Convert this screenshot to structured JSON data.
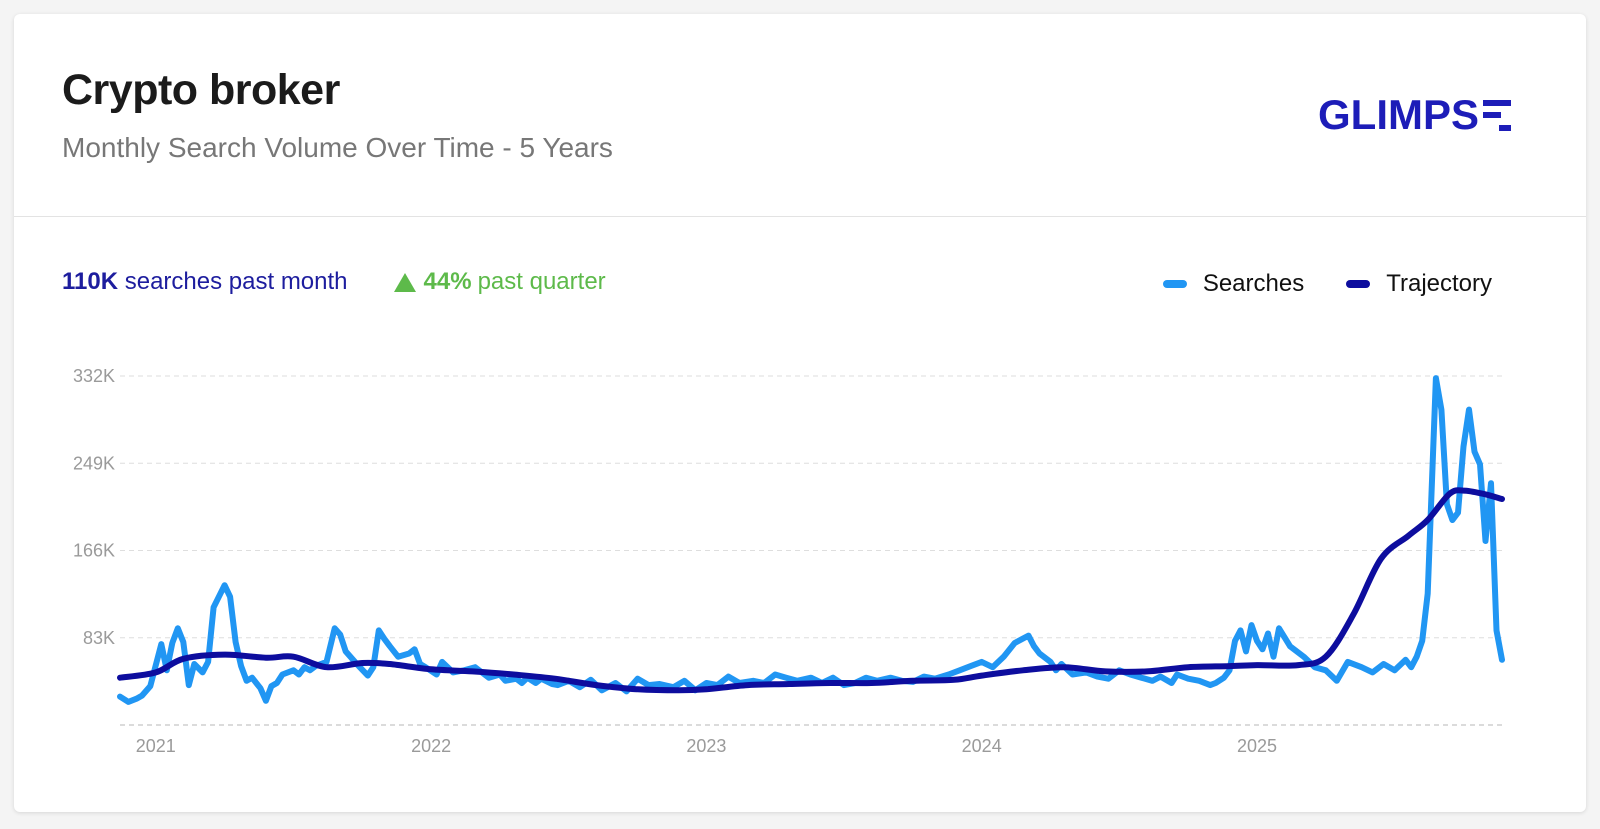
{
  "header": {
    "title": "Crypto broker",
    "subtitle": "Monthly Search Volume Over Time - 5 Years",
    "logo_text": "GLIMPS"
  },
  "stats": {
    "month_value": "110K",
    "month_label": "searches past month",
    "quarter_value": "44%",
    "quarter_label": "past quarter"
  },
  "colors": {
    "searches": "#2196f3",
    "trajectory": "#0d0d9e",
    "accent_green": "#5dba4a",
    "brand": "#1d1db8"
  },
  "chart_data": {
    "type": "line",
    "title": "",
    "xlabel": "",
    "ylabel": "",
    "x_ticks": [
      "2021",
      "2022",
      "2023",
      "2024",
      "2025"
    ],
    "x_tick_values": [
      2021.0,
      2022.0,
      2023.0,
      2024.0,
      2025.0
    ],
    "y_ticks": [
      "332K",
      "249K",
      "166K",
      "83K"
    ],
    "y_tick_values": [
      332,
      249,
      166,
      83
    ],
    "ylim": [
      0,
      332
    ],
    "xlim": [
      2020.87,
      2025.89
    ],
    "grid": true,
    "legend_position": "top-right",
    "series": [
      {
        "name": "Searches",
        "x": [
          2020.87,
          2020.9,
          2020.93,
          2020.95,
          2020.98,
          2021.02,
          2021.04,
          2021.06,
          2021.08,
          2021.1,
          2021.12,
          2021.14,
          2021.17,
          2021.19,
          2021.21,
          2021.25,
          2021.27,
          2021.29,
          2021.31,
          2021.33,
          2021.35,
          2021.38,
          2021.4,
          2021.42,
          2021.44,
          2021.46,
          2021.5,
          2021.52,
          2021.54,
          2021.56,
          2021.58,
          2021.62,
          2021.65,
          2021.67,
          2021.69,
          2021.73,
          2021.77,
          2021.79,
          2021.81,
          2021.83,
          2021.85,
          2021.88,
          2021.92,
          2021.94,
          2021.96,
          2021.98,
          2022.02,
          2022.04,
          2022.08,
          2022.12,
          2022.16,
          2022.21,
          2022.25,
          2022.27,
          2022.31,
          2022.33,
          2022.35,
          2022.38,
          2022.4,
          2022.44,
          2022.46,
          2022.5,
          2022.54,
          2022.58,
          2022.62,
          2022.67,
          2022.71,
          2022.75,
          2022.79,
          2022.83,
          2022.88,
          2022.92,
          2022.96,
          2023.0,
          2023.04,
          2023.08,
          2023.12,
          2023.17,
          2023.21,
          2023.25,
          2023.29,
          2023.33,
          2023.38,
          2023.42,
          2023.46,
          2023.5,
          2023.54,
          2023.58,
          2023.62,
          2023.67,
          2023.71,
          2023.75,
          2023.79,
          2023.83,
          2023.88,
          2023.92,
          2023.96,
          2024.0,
          2024.04,
          2024.08,
          2024.12,
          2024.17,
          2024.19,
          2024.21,
          2024.25,
          2024.27,
          2024.29,
          2024.33,
          2024.38,
          2024.42,
          2024.46,
          2024.5,
          2024.54,
          2024.58,
          2024.62,
          2024.65,
          2024.69,
          2024.71,
          2024.75,
          2024.79,
          2024.83,
          2024.85,
          2024.88,
          2024.9,
          2024.92,
          2024.94,
          2024.96,
          2024.98,
          2025.0,
          2025.02,
          2025.04,
          2025.06,
          2025.08,
          2025.12,
          2025.17,
          2025.21,
          2025.25,
          2025.29,
          2025.33,
          2025.38,
          2025.42,
          2025.46,
          2025.5,
          2025.54,
          2025.56,
          2025.58,
          2025.6,
          2025.62,
          2025.65,
          2025.67,
          2025.69,
          2025.71,
          2025.73,
          2025.75,
          2025.77,
          2025.79,
          2025.81,
          2025.83,
          2025.85,
          2025.87,
          2025.89
        ],
        "values": [
          27,
          22,
          25,
          28,
          37,
          77,
          52,
          78,
          92,
          79,
          38,
          58,
          50,
          60,
          112,
          133,
          122,
          79,
          56,
          42,
          45,
          35,
          23,
          37,
          40,
          48,
          52,
          48,
          55,
          52,
          56,
          60,
          92,
          86,
          70,
          58,
          47,
          55,
          90,
          82,
          75,
          65,
          68,
          72,
          58,
          55,
          48,
          60,
          50,
          52,
          55,
          45,
          48,
          42,
          44,
          40,
          45,
          40,
          44,
          39,
          38,
          42,
          36,
          43,
          33,
          40,
          32,
          44,
          38,
          39,
          36,
          42,
          33,
          40,
          38,
          46,
          40,
          42,
          40,
          48,
          45,
          42,
          45,
          40,
          45,
          38,
          40,
          45,
          42,
          45,
          42,
          41,
          46,
          44,
          48,
          52,
          56,
          60,
          55,
          65,
          78,
          85,
          75,
          68,
          60,
          52,
          58,
          48,
          50,
          46,
          44,
          52,
          48,
          45,
          42,
          46,
          40,
          48,
          44,
          42,
          38,
          40,
          45,
          52,
          80,
          90,
          70,
          95,
          80,
          72,
          87,
          65,
          92,
          75,
          65,
          55,
          52,
          42,
          60,
          55,
          50,
          58,
          52,
          62,
          55,
          65,
          80,
          125,
          330,
          300,
          210,
          195,
          202,
          265,
          300,
          260,
          248,
          175,
          230,
          90,
          62
        ],
        "display": "line"
      },
      {
        "name": "Trajectory",
        "x": [
          2020.87,
          2021.0,
          2021.1,
          2021.25,
          2021.4,
          2021.5,
          2021.62,
          2021.75,
          2021.85,
          2022.0,
          2022.15,
          2022.3,
          2022.45,
          2022.6,
          2022.75,
          2022.9,
          2023.0,
          2023.15,
          2023.3,
          2023.45,
          2023.6,
          2023.75,
          2023.9,
          2024.0,
          2024.15,
          2024.3,
          2024.45,
          2024.6,
          2024.75,
          2024.9,
          2025.0,
          2025.15,
          2025.25,
          2025.35,
          2025.45,
          2025.55,
          2025.62,
          2025.7,
          2025.75,
          2025.82,
          2025.89
        ],
        "values": [
          45,
          50,
          63,
          67,
          64,
          65,
          55,
          59,
          58,
          53,
          51,
          48,
          44,
          38,
          34,
          33,
          34,
          38,
          39,
          40,
          40,
          42,
          43,
          47,
          52,
          55,
          51,
          51,
          55,
          56,
          57,
          57,
          65,
          105,
          158,
          180,
          195,
          220,
          223,
          220,
          215
        ],
        "display": "smooth-line"
      }
    ]
  }
}
